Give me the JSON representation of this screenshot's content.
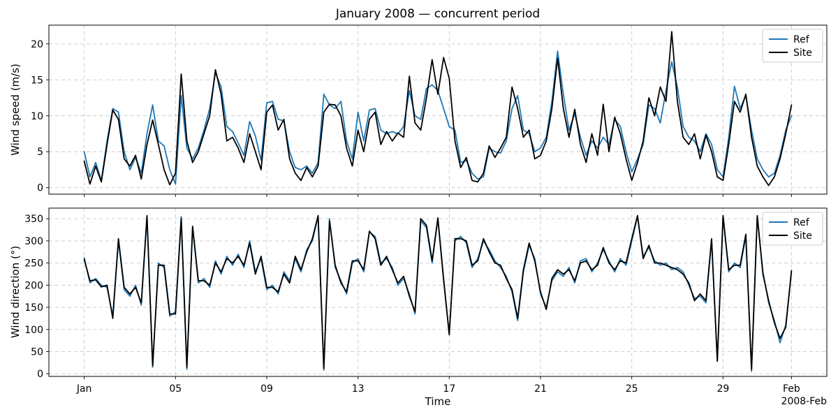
{
  "figure": {
    "title": "January 2008 — concurrent period",
    "xlabel": "Time",
    "x_offset_label": "2008-Feb",
    "colors": {
      "ref": "#1f77b4",
      "site": "#000000",
      "grid": "#c9c9c9",
      "spine": "#000000",
      "background": "#ffffff"
    },
    "legend": {
      "position": "upper right",
      "entries": [
        "Ref",
        "Site"
      ]
    }
  },
  "chart_data": [
    {
      "type": "line",
      "name": "wind-speed",
      "ylabel": "Wind speed (m/s)",
      "x_unit": "day of January 2008 (Jan 1 = 1, Feb 1 = 32), 6-hourly samples",
      "x_start": 1,
      "x_step": 0.25,
      "xlim": [
        -0.55,
        33.55
      ],
      "ylim": [
        -0.9,
        22.6
      ],
      "yticks": [
        0,
        5,
        10,
        15,
        20
      ],
      "xticks": {
        "positions": [
          1,
          5,
          9,
          13,
          17,
          21,
          25,
          29,
          32
        ],
        "labels": [
          "Jan",
          "05",
          "09",
          "13",
          "17",
          "21",
          "25",
          "29",
          "Feb"
        ]
      },
      "grid": true,
      "legend_position": "upper right",
      "series": [
        {
          "name": "Ref",
          "color": "#1f77b4",
          "values": [
            5.0,
            1.5,
            3.5,
            1.0,
            6.5,
            11.0,
            10.5,
            5.0,
            2.5,
            4.2,
            2.0,
            7.5,
            11.5,
            6.5,
            5.8,
            2.5,
            0.5,
            12.8,
            5.5,
            4.0,
            5.5,
            8.0,
            11.0,
            16.0,
            14.0,
            8.5,
            7.8,
            6.2,
            4.5,
            9.2,
            7.2,
            3.8,
            11.8,
            12.0,
            9.5,
            9.3,
            5.0,
            2.8,
            2.5,
            3.0,
            2.0,
            3.5,
            13.0,
            11.5,
            11.0,
            12.0,
            6.5,
            4.0,
            10.5,
            6.5,
            10.8,
            11.0,
            8.0,
            7.5,
            7.8,
            7.5,
            8.5,
            13.5,
            10.0,
            9.5,
            13.8,
            14.3,
            13.5,
            11.0,
            8.5,
            8.0,
            3.5,
            3.8,
            2.0,
            1.2,
            1.5,
            5.5,
            5.0,
            4.8,
            6.5,
            11.0,
            12.8,
            8.0,
            7.5,
            5.0,
            5.5,
            7.0,
            12.0,
            19.0,
            13.0,
            8.0,
            10.3,
            7.0,
            4.5,
            6.5,
            5.5,
            7.0,
            6.0,
            9.5,
            8.5,
            5.0,
            2.2,
            4.0,
            6.0,
            11.5,
            11.0,
            9.0,
            13.5,
            17.5,
            14.0,
            8.5,
            7.0,
            6.5,
            5.0,
            7.5,
            6.0,
            2.5,
            1.5,
            7.0,
            14.1,
            11.0,
            12.8,
            8.0,
            4.0,
            2.5,
            1.5,
            2.0,
            4.5,
            8.0,
            10.0
          ]
        },
        {
          "name": "Site",
          "color": "#000000",
          "values": [
            3.7,
            0.5,
            3.0,
            0.8,
            6.0,
            10.8,
            9.5,
            4.0,
            3.0,
            4.5,
            1.2,
            6.0,
            9.4,
            6.0,
            2.5,
            0.4,
            2.0,
            15.8,
            6.5,
            3.5,
            5.0,
            7.5,
            10.0,
            16.4,
            13.0,
            6.5,
            7.0,
            5.5,
            3.5,
            7.5,
            5.0,
            2.5,
            10.5,
            11.5,
            8.0,
            9.5,
            4.0,
            2.0,
            1.0,
            2.8,
            1.5,
            3.0,
            10.5,
            11.6,
            11.5,
            10.0,
            5.5,
            3.0,
            8.0,
            5.0,
            9.5,
            10.5,
            6.0,
            7.8,
            6.5,
            7.6,
            7.0,
            15.5,
            9.0,
            8.0,
            12.5,
            17.8,
            13.0,
            18.1,
            15.2,
            6.5,
            2.8,
            4.2,
            1.0,
            0.8,
            2.0,
            5.8,
            4.2,
            5.5,
            7.0,
            14.0,
            11.0,
            7.0,
            8.0,
            4.0,
            4.5,
            6.5,
            11.0,
            18.0,
            11.0,
            7.0,
            10.9,
            6.0,
            3.5,
            7.5,
            4.5,
            11.6,
            5.0,
            9.8,
            7.5,
            4.0,
            1.0,
            3.5,
            6.5,
            12.5,
            10.0,
            14.0,
            12.0,
            21.7,
            12.0,
            7.0,
            6.0,
            7.5,
            4.0,
            7.3,
            5.0,
            1.5,
            1.0,
            6.0,
            12.0,
            10.5,
            13.0,
            7.0,
            3.0,
            1.5,
            0.3,
            1.5,
            4.0,
            7.5,
            11.5
          ]
        }
      ]
    },
    {
      "type": "line",
      "name": "wind-direction",
      "ylabel": "Wind direction (°)",
      "x_unit": "day of January 2008 (Jan 1 = 1, Feb 1 = 32), 6-hourly samples",
      "x_start": 1,
      "x_step": 0.25,
      "xlim": [
        -0.55,
        33.55
      ],
      "ylim": [
        -6,
        374
      ],
      "yticks": [
        0,
        50,
        100,
        150,
        200,
        250,
        300,
        350
      ],
      "xticks": {
        "positions": [
          1,
          5,
          9,
          13,
          17,
          21,
          25,
          29,
          32
        ],
        "labels": [
          "Jan",
          "05",
          "09",
          "13",
          "17",
          "21",
          "25",
          "29",
          "Feb"
        ]
      },
      "grid": true,
      "legend_position": "upper right",
      "series": [
        {
          "name": "Ref",
          "color": "#1f77b4",
          "values": [
            262,
            205,
            215,
            200,
            195,
            130,
            300,
            190,
            175,
            200,
            155,
            355,
            15,
            250,
            240,
            130,
            140,
            355,
            10,
            330,
            205,
            215,
            195,
            255,
            225,
            265,
            245,
            270,
            240,
            300,
            230,
            260,
            190,
            200,
            180,
            230,
            210,
            260,
            230,
            280,
            300,
            355,
            8,
            350,
            240,
            210,
            180,
            250,
            260,
            230,
            320,
            310,
            250,
            260,
            240,
            200,
            215,
            180,
            135,
            345,
            330,
            250,
            350,
            210,
            90,
            300,
            310,
            295,
            240,
            260,
            300,
            280,
            255,
            240,
            220,
            185,
            120,
            230,
            290,
            260,
            180,
            150,
            210,
            230,
            220,
            240,
            205,
            255,
            260,
            230,
            250,
            280,
            255,
            230,
            260,
            245,
            300,
            355,
            265,
            285,
            255,
            245,
            250,
            235,
            240,
            230,
            200,
            170,
            175,
            160,
            300,
            30,
            355,
            230,
            250,
            240,
            310,
            5,
            355,
            230,
            160,
            120,
            70,
            110,
            230
          ]
        },
        {
          "name": "Site",
          "color": "#000000",
          "values": [
            258,
            210,
            212,
            196,
            200,
            125,
            305,
            195,
            180,
            195,
            160,
            357,
            18,
            245,
            245,
            135,
            135,
            350,
            15,
            333,
            210,
            210,
            200,
            250,
            230,
            260,
            250,
            265,
            245,
            295,
            225,
            265,
            195,
            195,
            185,
            225,
            205,
            265,
            235,
            275,
            305,
            357,
            12,
            345,
            245,
            205,
            185,
            255,
            255,
            235,
            322,
            305,
            245,
            265,
            235,
            205,
            220,
            175,
            140,
            350,
            335,
            255,
            352,
            215,
            88,
            305,
            305,
            300,
            245,
            255,
            305,
            275,
            250,
            245,
            215,
            190,
            125,
            235,
            295,
            255,
            185,
            145,
            215,
            235,
            225,
            235,
            210,
            250,
            255,
            235,
            245,
            285,
            250,
            235,
            255,
            250,
            305,
            357,
            260,
            290,
            250,
            250,
            245,
            240,
            235,
            225,
            205,
            165,
            180,
            165,
            305,
            28,
            357,
            235,
            245,
            245,
            315,
            10,
            357,
            225,
            165,
            115,
            80,
            105,
            233
          ]
        }
      ]
    }
  ]
}
